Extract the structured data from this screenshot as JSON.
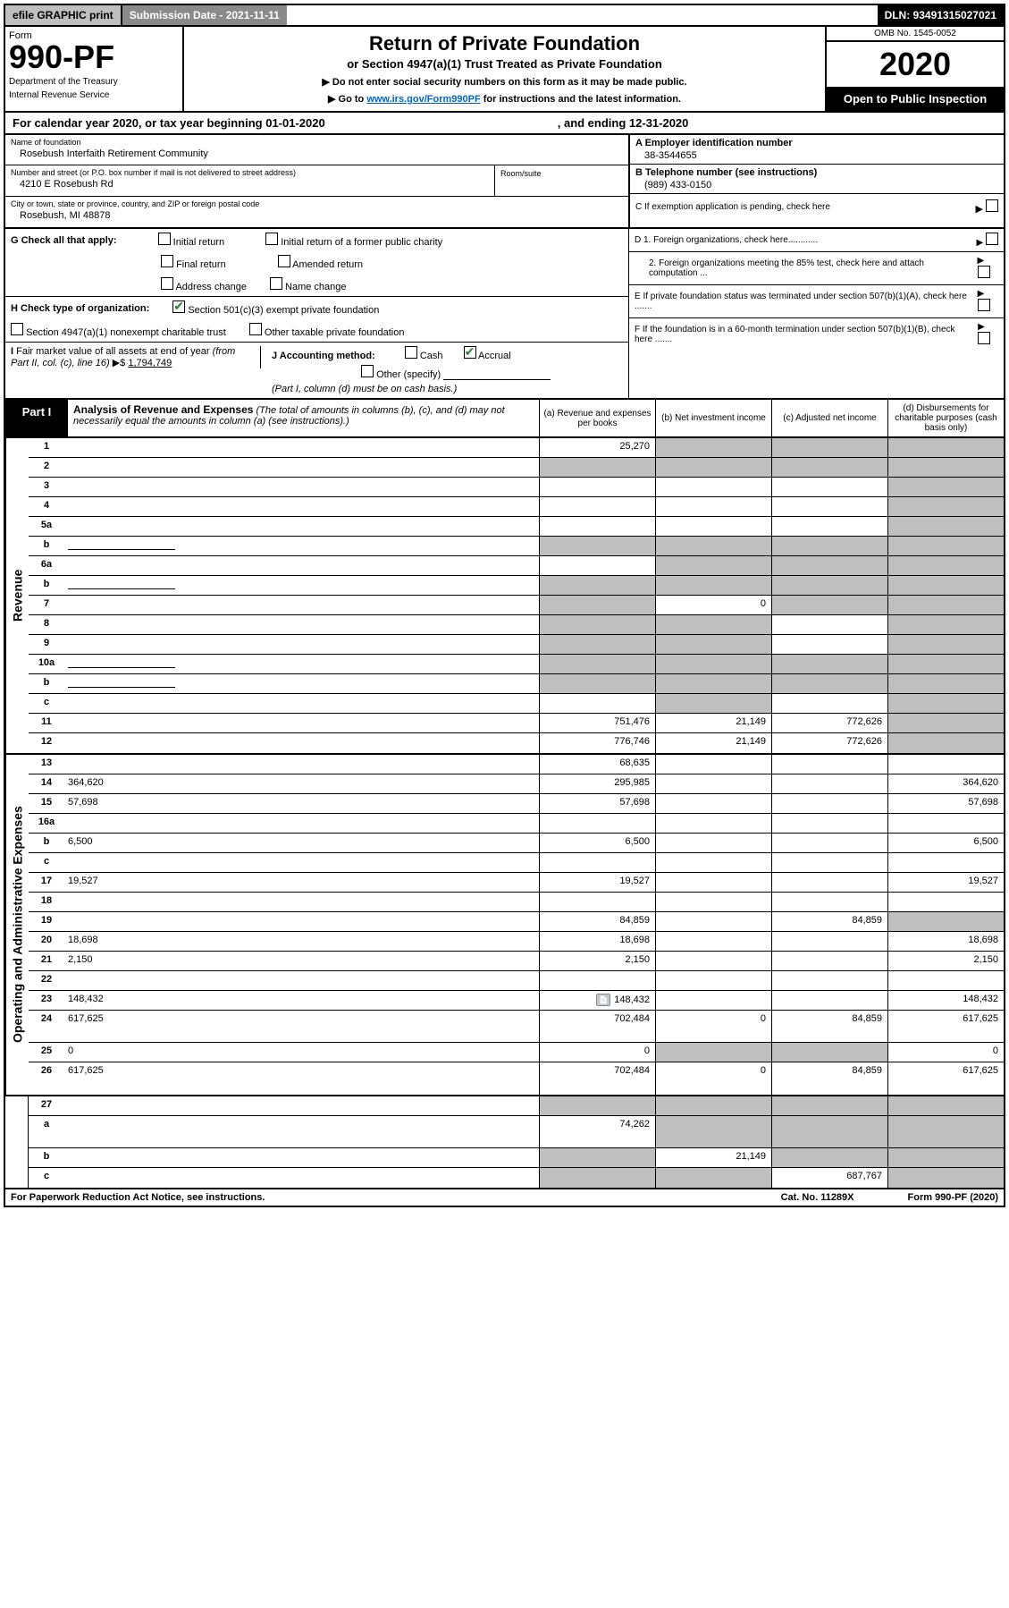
{
  "topbar": {
    "efile": "efile GRAPHIC print",
    "submission_label": "Submission Date - 2021-11-11",
    "dln": "DLN: 93491315027021"
  },
  "header": {
    "form_label": "Form",
    "form_number": "990-PF",
    "dept1": "Department of the Treasury",
    "dept2": "Internal Revenue Service",
    "title": "Return of Private Foundation",
    "subtitle": "or Section 4947(a)(1) Trust Treated as Private Foundation",
    "note1": "▶ Do not enter social security numbers on this form as it may be made public.",
    "note2_pre": "▶ Go to ",
    "note2_link": "www.irs.gov/Form990PF",
    "note2_post": " for instructions and the latest information.",
    "omb": "OMB No. 1545-0052",
    "year": "2020",
    "open": "Open to Public Inspection"
  },
  "calendar": {
    "text": "For calendar year 2020, or tax year beginning 01-01-2020",
    "ending": ", and ending 12-31-2020"
  },
  "info": {
    "name_label": "Name of foundation",
    "name": "Rosebush Interfaith Retirement Community",
    "addr_label": "Number and street (or P.O. box number if mail is not delivered to street address)",
    "addr": "4210 E Rosebush Rd",
    "room_label": "Room/suite",
    "city_label": "City or town, state or province, country, and ZIP or foreign postal code",
    "city": "Rosebush, MI  48878",
    "ein_label": "A Employer identification number",
    "ein": "38-3544655",
    "phone_label": "B Telephone number (see instructions)",
    "phone": "(989) 433-0150",
    "c_label": "C If exemption application is pending, check here",
    "d1_label": "D 1. Foreign organizations, check here............",
    "d2_label": "2. Foreign organizations meeting the 85% test, check here and attach computation ...",
    "e_label": "E If private foundation status was terminated under section 507(b)(1)(A), check here .......",
    "f_label": "F If the foundation is in a 60-month termination under section 507(b)(1)(B), check here ......."
  },
  "checks": {
    "g_label": "G Check all that apply:",
    "g_initial": "Initial return",
    "g_initial_former": "Initial return of a former public charity",
    "g_final": "Final return",
    "g_amended": "Amended return",
    "g_address": "Address change",
    "g_name": "Name change",
    "h_label": "H Check type of organization:",
    "h_501c3": "Section 501(c)(3) exempt private foundation",
    "h_4947": "Section 4947(a)(1) nonexempt charitable trust",
    "h_other_tax": "Other taxable private foundation",
    "i_label": "I Fair market value of all assets at end of year (from Part II, col. (c), line 16) ▶$ ",
    "i_value": "1,794,749",
    "j_label": "J Accounting method:",
    "j_cash": "Cash",
    "j_accrual": "Accrual",
    "j_other": "Other (specify)",
    "j_note": "(Part I, column (d) must be on cash basis.)"
  },
  "part1": {
    "label": "Part I",
    "title": "Analysis of Revenue and Expenses",
    "title_note": " (The total of amounts in columns (b), (c), and (d) may not necessarily equal the amounts in column (a) (see instructions).)",
    "col_a": "(a) Revenue and expenses per books",
    "col_b": "(b) Net investment income",
    "col_c": "(c) Adjusted net income",
    "col_d": "(d) Disbursements for charitable purposes (cash basis only)"
  },
  "sections": {
    "revenue": "Revenue",
    "opadmin": "Operating and Administrative Expenses"
  },
  "rows": [
    {
      "n": "1",
      "d": "",
      "a": "25,270",
      "b": "",
      "c": "",
      "bsh": true,
      "csh": true,
      "dsh": true
    },
    {
      "n": "2",
      "d": "",
      "a": "",
      "b": "",
      "c": "",
      "ash": true,
      "bsh": true,
      "csh": true,
      "dsh": true
    },
    {
      "n": "3",
      "d": "",
      "a": "",
      "b": "",
      "c": "",
      "dsh": true
    },
    {
      "n": "4",
      "d": "",
      "a": "",
      "b": "",
      "c": "",
      "dsh": true
    },
    {
      "n": "5a",
      "d": "",
      "a": "",
      "b": "",
      "c": "",
      "dsh": true
    },
    {
      "n": "b",
      "d": "",
      "a": "",
      "b": "",
      "c": "",
      "ash": true,
      "bsh": true,
      "csh": true,
      "dsh": true,
      "inlinebox": true
    },
    {
      "n": "6a",
      "d": "",
      "a": "",
      "b": "",
      "c": "",
      "bsh": true,
      "csh": true,
      "dsh": true
    },
    {
      "n": "b",
      "d": "",
      "a": "",
      "b": "",
      "c": "",
      "ash": true,
      "bsh": true,
      "csh": true,
      "dsh": true,
      "inlinebox": true
    },
    {
      "n": "7",
      "d": "",
      "a": "",
      "b": "0",
      "c": "",
      "ash": true,
      "csh": true,
      "dsh": true
    },
    {
      "n": "8",
      "d": "",
      "a": "",
      "b": "",
      "c": "",
      "ash": true,
      "bsh": true,
      "dsh": true
    },
    {
      "n": "9",
      "d": "",
      "a": "",
      "b": "",
      "c": "",
      "ash": true,
      "bsh": true,
      "dsh": true
    },
    {
      "n": "10a",
      "d": "",
      "a": "",
      "b": "",
      "c": "",
      "ash": true,
      "bsh": true,
      "csh": true,
      "dsh": true,
      "inlinebox": true
    },
    {
      "n": "b",
      "d": "",
      "a": "",
      "b": "",
      "c": "",
      "ash": true,
      "bsh": true,
      "csh": true,
      "dsh": true,
      "inlinebox": true
    },
    {
      "n": "c",
      "d": "",
      "a": "",
      "b": "",
      "c": "",
      "bsh": true,
      "dsh": true
    },
    {
      "n": "11",
      "d": "",
      "a": "751,476",
      "b": "21,149",
      "c": "772,626",
      "dsh": true
    },
    {
      "n": "12",
      "d": "",
      "a": "776,746",
      "b": "21,149",
      "c": "772,626",
      "dsh": true,
      "bold": true
    }
  ],
  "rows_exp": [
    {
      "n": "13",
      "d": "",
      "a": "68,635",
      "b": "",
      "c": ""
    },
    {
      "n": "14",
      "d": "364,620",
      "a": "295,985",
      "b": "",
      "c": ""
    },
    {
      "n": "15",
      "d": "57,698",
      "a": "57,698",
      "b": "",
      "c": ""
    },
    {
      "n": "16a",
      "d": "",
      "a": "",
      "b": "",
      "c": ""
    },
    {
      "n": "b",
      "d": "6,500",
      "a": "6,500",
      "b": "",
      "c": ""
    },
    {
      "n": "c",
      "d": "",
      "a": "",
      "b": "",
      "c": ""
    },
    {
      "n": "17",
      "d": "19,527",
      "a": "19,527",
      "b": "",
      "c": ""
    },
    {
      "n": "18",
      "d": "",
      "a": "",
      "b": "",
      "c": ""
    },
    {
      "n": "19",
      "d": "",
      "a": "84,859",
      "b": "",
      "c": "84,859",
      "dsh": true
    },
    {
      "n": "20",
      "d": "18,698",
      "a": "18,698",
      "b": "",
      "c": ""
    },
    {
      "n": "21",
      "d": "2,150",
      "a": "2,150",
      "b": "",
      "c": ""
    },
    {
      "n": "22",
      "d": "",
      "a": "",
      "b": "",
      "c": ""
    },
    {
      "n": "23",
      "d": "148,432",
      "a": "148,432",
      "b": "",
      "c": "",
      "icon": true
    },
    {
      "n": "24",
      "d": "617,625",
      "a": "702,484",
      "b": "0",
      "c": "84,859",
      "tall": true
    },
    {
      "n": "25",
      "d": "0",
      "a": "0",
      "b": "",
      "c": "",
      "bsh": true,
      "csh": true
    },
    {
      "n": "26",
      "d": "617,625",
      "a": "702,484",
      "b": "0",
      "c": "84,859",
      "tall": true
    }
  ],
  "rows_final": [
    {
      "n": "27",
      "d": "",
      "a": "",
      "b": "",
      "c": "",
      "ash": true,
      "bsh": true,
      "csh": true,
      "dsh": true
    },
    {
      "n": "a",
      "d": "",
      "a": "74,262",
      "b": "",
      "c": "",
      "bsh": true,
      "csh": true,
      "dsh": true,
      "tall": true
    },
    {
      "n": "b",
      "d": "",
      "a": "",
      "b": "21,149",
      "c": "",
      "ash": true,
      "csh": true,
      "dsh": true
    },
    {
      "n": "c",
      "d": "",
      "a": "",
      "b": "",
      "c": "687,767",
      "ash": true,
      "bsh": true,
      "dsh": true
    }
  ],
  "footer": {
    "left": "For Paperwork Reduction Act Notice, see instructions.",
    "cat": "Cat. No. 11289X",
    "form": "Form 990-PF (2020)"
  }
}
